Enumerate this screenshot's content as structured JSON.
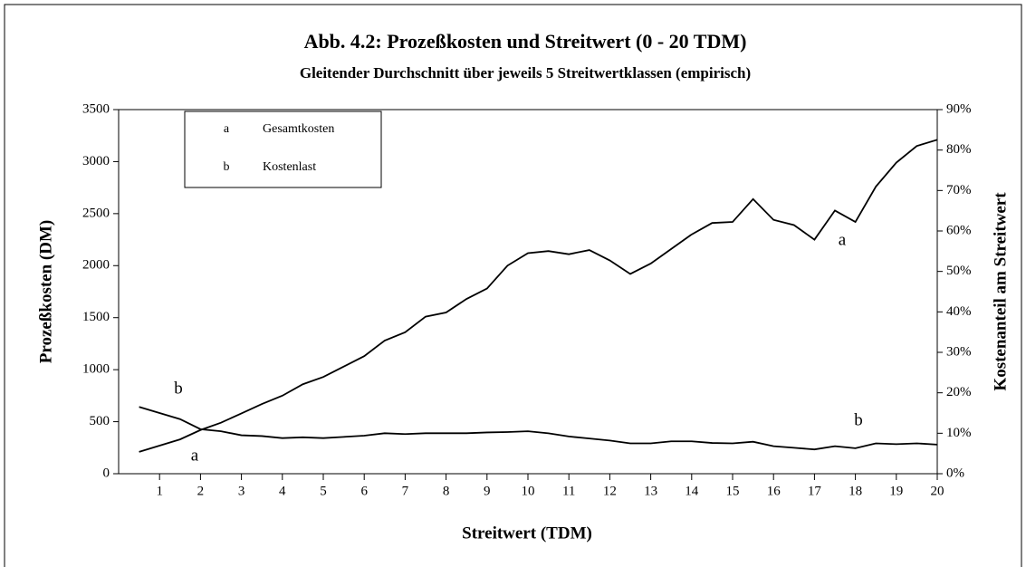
{
  "chart_data": {
    "type": "line",
    "title": "Abb. 4.2: Prozeßkosten und Streitwert (0 - 20 TDM)",
    "subtitle": "Gleitender Durchschnitt über jeweils 5 Streitwertklassen (empirisch)",
    "x_label": "Streitwert (TDM)",
    "y_label": "Prozeßkosten (DM)",
    "y2_label": "Kostenanteil am Streitwert",
    "x": [
      0.5,
      1,
      1.5,
      2,
      2.5,
      3,
      3.5,
      4,
      4.5,
      5,
      5.5,
      6,
      6.5,
      7,
      7.5,
      8,
      8.5,
      9,
      9.5,
      10,
      10.5,
      11,
      11.5,
      12,
      12.5,
      13,
      13.5,
      14,
      14.5,
      15,
      15.5,
      16,
      16.5,
      17,
      17.5,
      18,
      18.5,
      19,
      19.5,
      20
    ],
    "series": [
      {
        "name": "Gesamtkosten",
        "key": "a",
        "color": "#000000",
        "values": [
          210,
          270,
          330,
          420,
          490,
          580,
          670,
          750,
          860,
          930,
          1030,
          1130,
          1280,
          1360,
          1510,
          1550,
          1680,
          1780,
          2000,
          2120,
          2140,
          2110,
          2150,
          2050,
          1920,
          2020,
          2160,
          2300,
          2410,
          2420,
          2640,
          2440,
          2390,
          2250,
          2530,
          2420,
          2760,
          2990,
          3150,
          3210
        ]
      },
      {
        "name": "Kostenlast",
        "key": "b",
        "color": "#000000",
        "axis": "y2",
        "values": [
          16.5,
          15,
          13.5,
          11,
          10.5,
          9.5,
          9.3,
          8.8,
          9,
          8.8,
          9.1,
          9.4,
          10,
          9.8,
          10,
          10,
          10,
          10.2,
          10.3,
          10.5,
          10,
          9.2,
          8.7,
          8.2,
          7.5,
          7.5,
          8,
          8,
          7.6,
          7.5,
          7.9,
          6.8,
          6.4,
          6,
          6.8,
          6.3,
          7.5,
          7.3,
          7.5,
          7.2
        ]
      }
    ],
    "annotations": [
      "a",
      "a",
      "b",
      "b"
    ],
    "xlim": [
      0,
      20
    ],
    "xticks": [
      1,
      2,
      3,
      4,
      5,
      6,
      7,
      8,
      9,
      10,
      11,
      12,
      13,
      14,
      15,
      16,
      17,
      18,
      19,
      20
    ],
    "ylim": [
      0,
      3500
    ],
    "yticks": [
      0,
      500,
      1000,
      1500,
      2000,
      2500,
      3000,
      3500
    ],
    "y2lim": [
      0,
      90
    ],
    "y2ticks": [
      {
        "value": 0,
        "label": "0%"
      },
      {
        "value": 10,
        "label": "10%"
      },
      {
        "value": 20,
        "label": "20%"
      },
      {
        "value": 30,
        "label": "30%"
      },
      {
        "value": 40,
        "label": "40%"
      },
      {
        "value": 50,
        "label": "50%"
      },
      {
        "value": 60,
        "label": "60%"
      },
      {
        "value": 70,
        "label": "70%"
      },
      {
        "value": 80,
        "label": "80%"
      },
      {
        "value": 90,
        "label": "90%"
      }
    ],
    "grid": false
  }
}
